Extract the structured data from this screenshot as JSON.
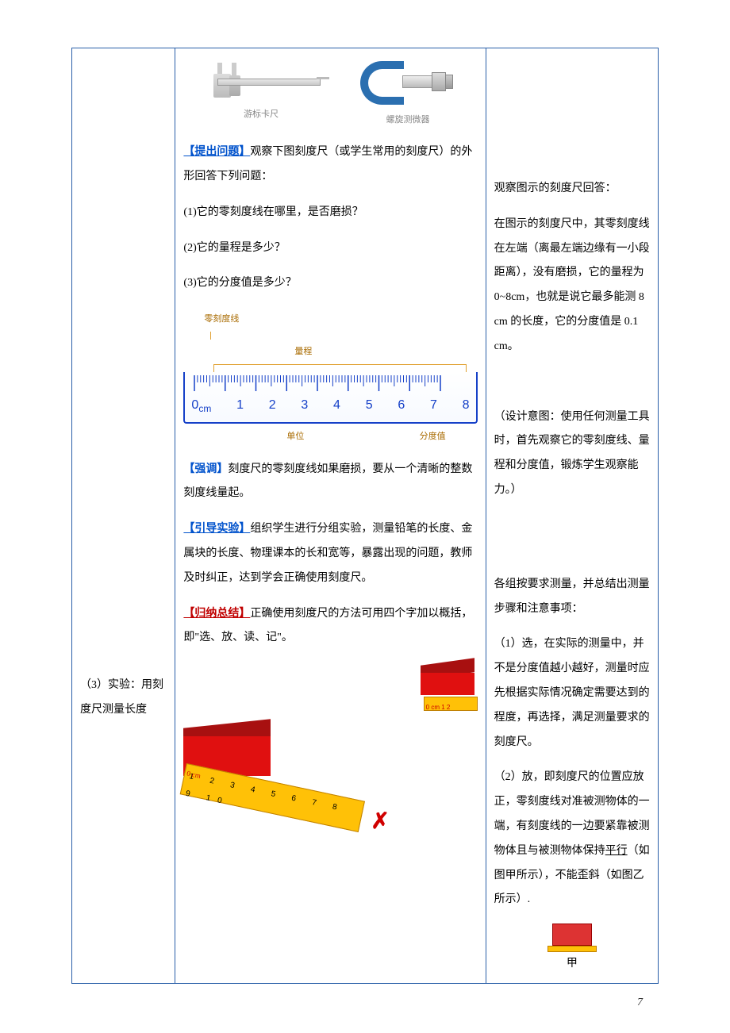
{
  "page_number": "7",
  "colors": {
    "border": "#2a5fa8",
    "tag_blue": "#0052cc",
    "tag_red": "#c00000",
    "ruler_num": "#1540c8",
    "ruler_annot": "#a96b00",
    "red_block": "#e01010",
    "red_block_dark": "#a81010",
    "yellow_ruler": "#ffc107",
    "cross": "#d00000"
  },
  "left_col": {
    "item": "（3）实验：用刻度尺测量长度"
  },
  "tool_images": {
    "vernier_label": "游标卡尺",
    "micrometer_label": "螺旋测微器"
  },
  "mid_col": {
    "tag_question": "【提出问题】",
    "question_intro": "观察下图刻度尺（或学生常用的刻度尺）的外形回答下列问题：",
    "q1": "(1)它的零刻度线在哪里，是否磨损？",
    "q2": "(2)它的量程是多少？",
    "q3": "(3)它的分度值是多少？",
    "ruler_diagram": {
      "zero_label": "零刻度线",
      "range_label": "量程",
      "unit_label": "单位",
      "division_label": "分度值",
      "unit_text": "cm",
      "tick_numbers": [
        "0",
        "1",
        "2",
        "3",
        "4",
        "5",
        "6",
        "7",
        "8"
      ]
    },
    "tag_emphasize": "【强调】",
    "emphasize_body": "刻度尺的零刻度线如果磨损，要从一个清晰的整数刻度线量起。",
    "tag_experiment": "【引导实验】",
    "experiment_body": "组织学生进行分组实验，测量铅笔的长度、金属块的长度、物理课本的长和宽等，暴露出现的问题，教师及时纠正，达到学会正确使用刻度尺。",
    "tag_summary": "【归纳总结】",
    "summary_body": "正确使用刻度尺的方法可用四个字加以概括，即\"选、放、读、记\"。",
    "small_ruler_label": "0 cm 1  2",
    "big_ruler_zero": "0 cm",
    "big_ruler_nums": "1 2 3 4 5 6 7 8 9 10",
    "cross_mark": "✗"
  },
  "right_col": {
    "obs_heading": "观察图示的刻度尺回答：",
    "obs_body": "在图示的刻度尺中，其零刻度线在左端（离最左端边缘有一小段距离），没有磨损，它的量程为 0~8cm，也就是说它最多能测 8 cm 的长度，它的分度值是 0.1 cm。",
    "design_intent": "（设计意图：使用任何测量工具时，首先观察它的零刻度线、量程和分度值，锻炼学生观察能力。）",
    "group_heading": "各组按要求测量，并总结出测量步骤和注意事项：",
    "step1": "（1）选，在实际的测量中，并不是分度值越小越好，测量时应先根据实际情况确定需要达到的程度，再选择，满足测量要求的刻度尺。",
    "step2_a": "（2）放，即刻度尺的位置应放正，零刻度线对准被测物体的一端，有刻度线的一边要紧靠被测物体且与被测物体保持",
    "step2_parallel": "平行",
    "step2_b": "（如图甲所示），不能歪斜（如图乙所示）.",
    "jia_label": "甲"
  }
}
